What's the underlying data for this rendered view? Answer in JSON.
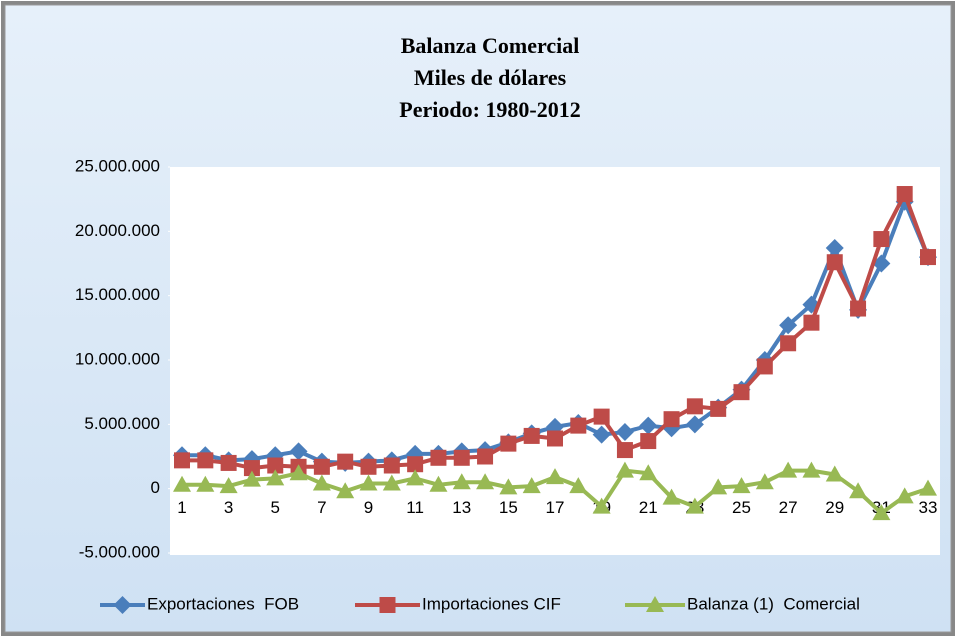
{
  "chart_data": {
    "type": "line",
    "title": [
      "Balanza Comercial",
      "Miles de dólares",
      "Periodo: 1980-2012"
    ],
    "categories": [
      "1",
      null,
      "3",
      null,
      "5",
      null,
      "7",
      null,
      "9",
      null,
      "11",
      null,
      "13",
      null,
      "15",
      null,
      "17",
      null,
      "19",
      null,
      "21",
      null,
      "23",
      null,
      "25",
      null,
      "27",
      null,
      "29",
      null,
      "31",
      null,
      "33"
    ],
    "series": [
      {
        "name": "Exportaciones  FOB",
        "color": "#4a7ebb",
        "marker": "diamond",
        "values": [
          2600000,
          2600000,
          2200000,
          2300000,
          2600000,
          2900000,
          2100000,
          2000000,
          2100000,
          2200000,
          2700000,
          2700000,
          2900000,
          3000000,
          3600000,
          4300000,
          4800000,
          5100000,
          4200000,
          4400000,
          4900000,
          4700000,
          5000000,
          6300000,
          7700000,
          10000000,
          12700000,
          14300000,
          18700000,
          13900000,
          17500000,
          22300000,
          18000000
        ]
      },
      {
        "name": "Importaciones CIF",
        "color": "#be4b48",
        "marker": "square",
        "values": [
          2200000,
          2200000,
          2000000,
          1600000,
          1800000,
          1700000,
          1700000,
          2100000,
          1700000,
          1800000,
          1900000,
          2400000,
          2400000,
          2500000,
          3500000,
          4100000,
          3900000,
          4900000,
          5600000,
          3000000,
          3700000,
          5400000,
          6400000,
          6200000,
          7500000,
          9500000,
          11300000,
          12900000,
          17600000,
          14000000,
          19400000,
          22900000,
          18000000
        ]
      },
      {
        "name": "Balanza (1)  Comercial",
        "color": "#98b954",
        "marker": "triangle",
        "values": [
          300000,
          300000,
          200000,
          700000,
          800000,
          1200000,
          400000,
          -200000,
          400000,
          400000,
          800000,
          300000,
          500000,
          500000,
          100000,
          200000,
          900000,
          200000,
          -1400000,
          1400000,
          1200000,
          -700000,
          -1400000,
          100000,
          200000,
          500000,
          1400000,
          1400000,
          1100000,
          -200000,
          -1900000,
          -600000,
          0
        ]
      }
    ],
    "ylim": [
      -5000000,
      25000000
    ],
    "yticks": [
      {
        "value": -5000000,
        "label": "-5.000.000"
      },
      0,
      {
        "value": 5000000,
        "label": "5.000.000"
      },
      {
        "value": 10000000,
        "label": "10.000.000"
      },
      {
        "value": 15000000,
        "label": "15.000.000"
      },
      {
        "value": 20000000,
        "label": "20.000.000"
      },
      {
        "value": 25000000,
        "label": "25.000.000"
      }
    ],
    "legend": "bottom"
  }
}
